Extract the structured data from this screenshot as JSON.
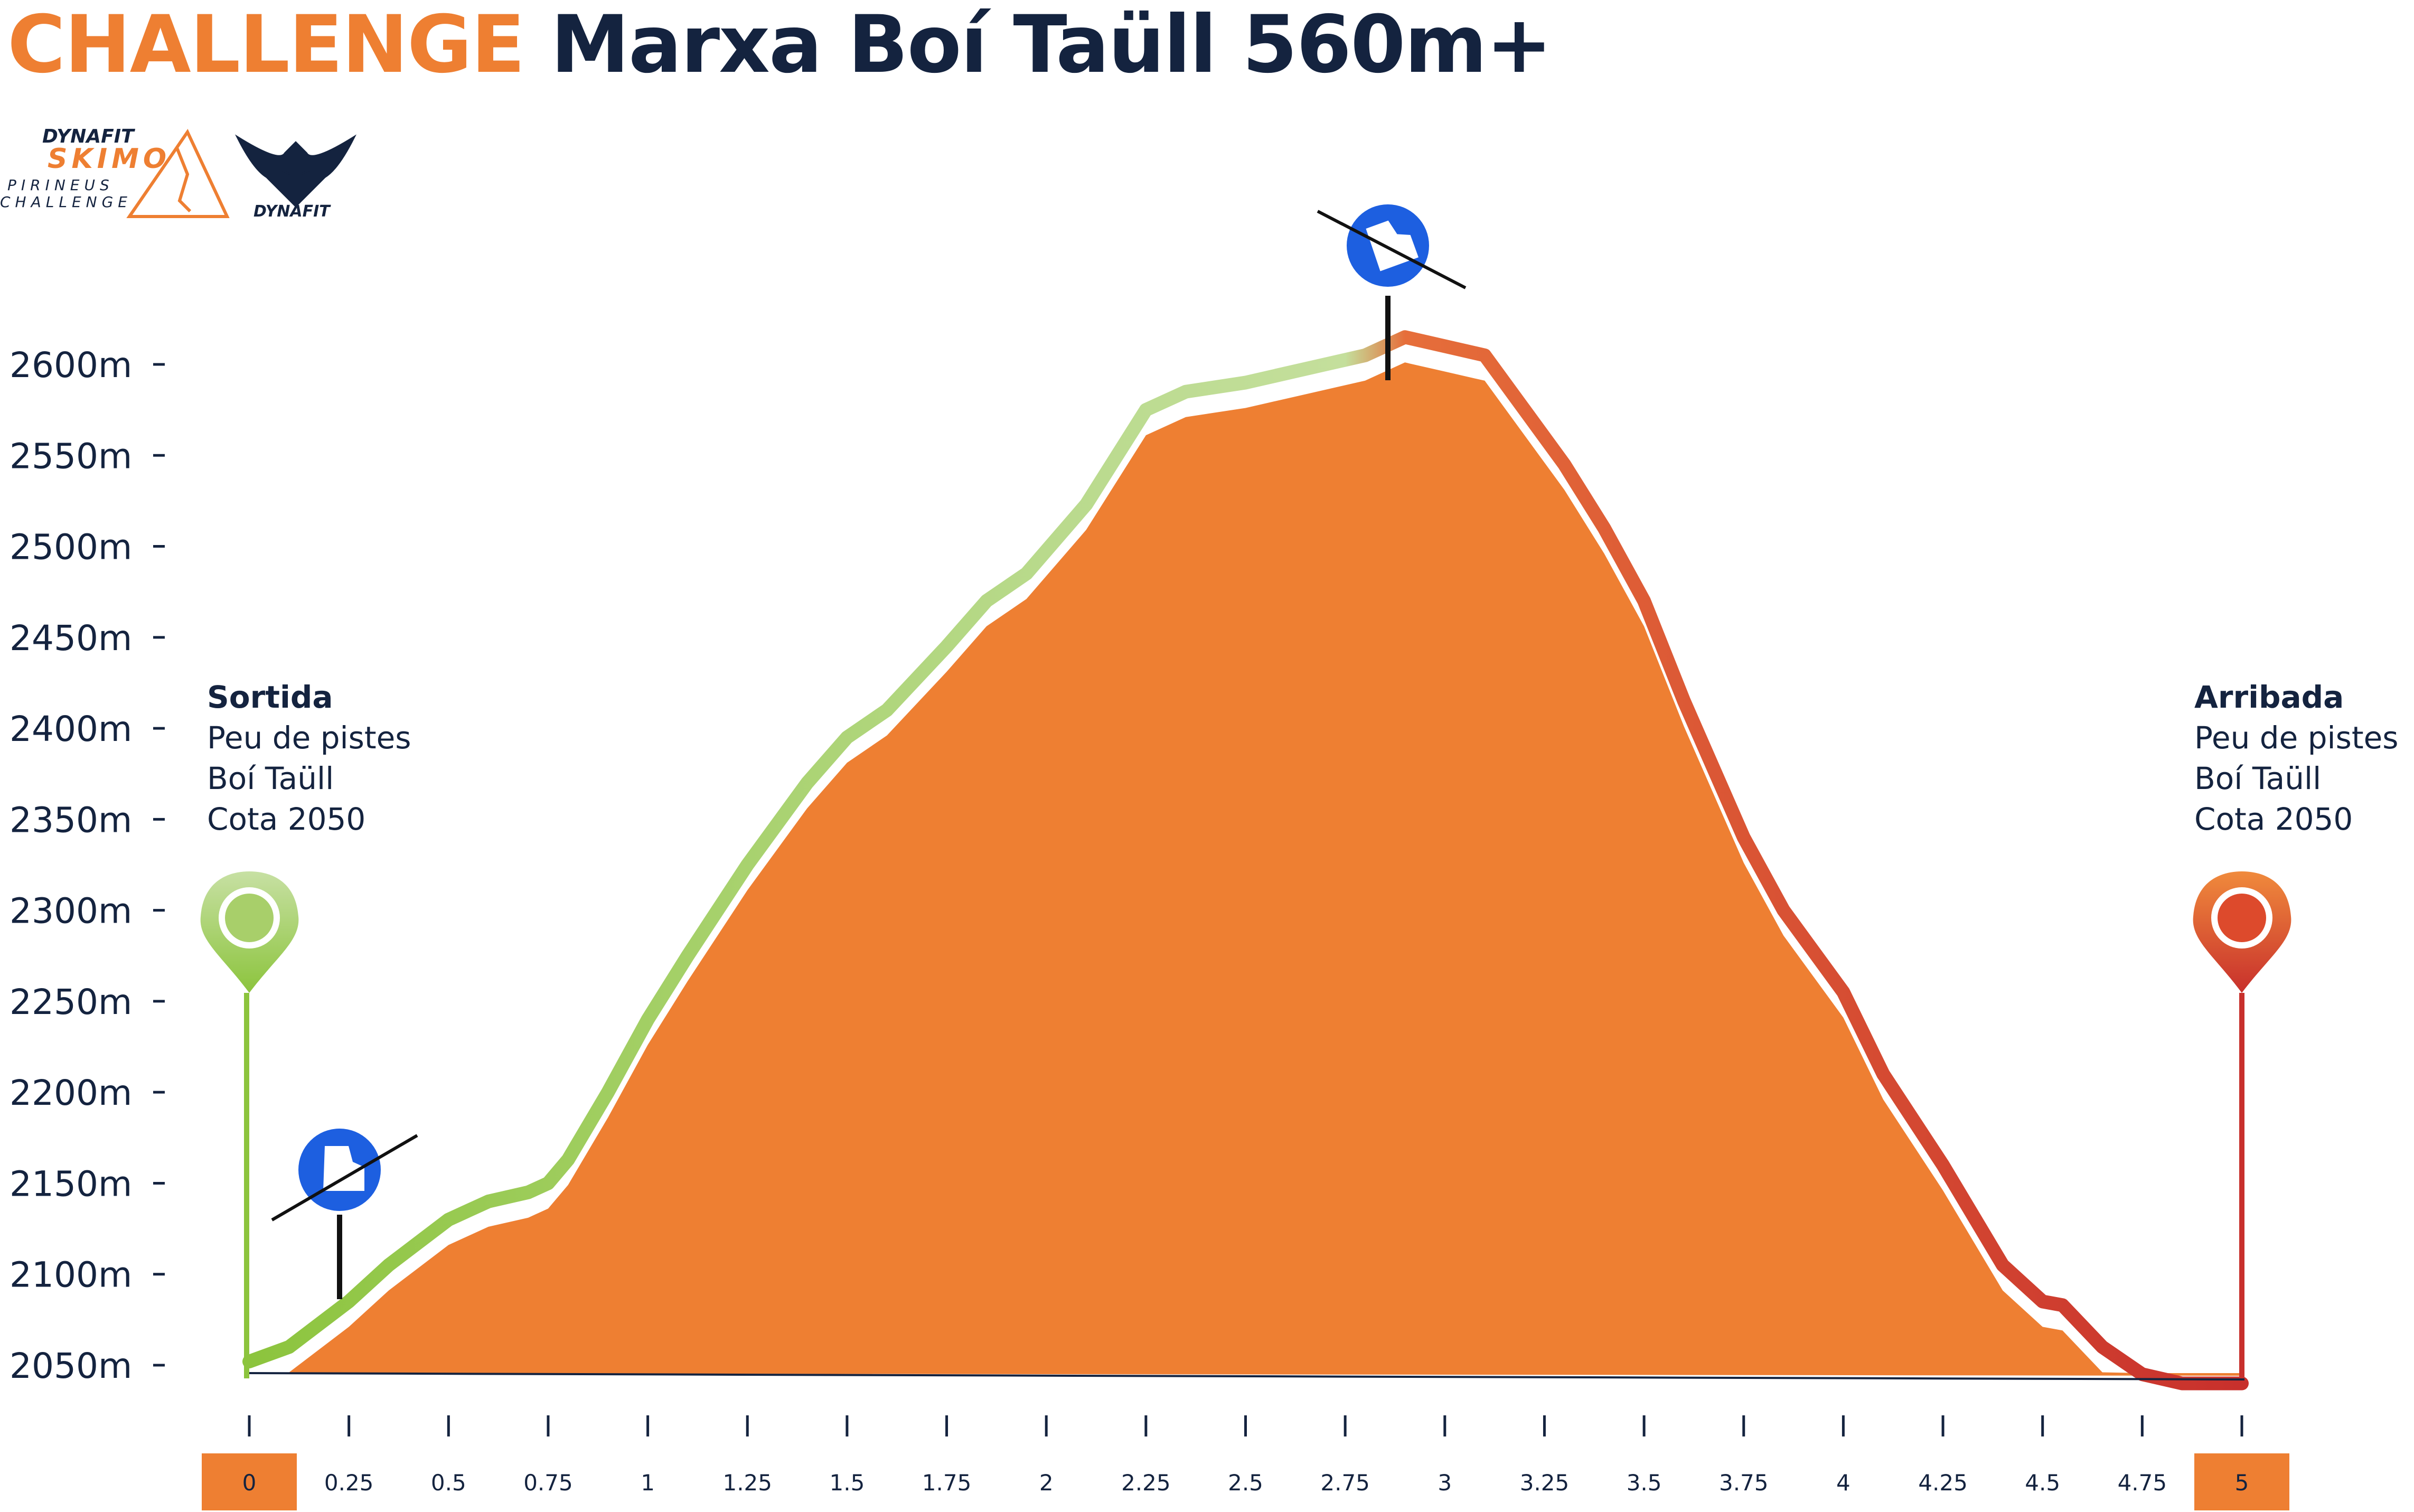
{
  "header": {
    "title_highlight": "CHALLENGE",
    "title_rest": "Marxa Boí Taüll 560m+"
  },
  "logos": {
    "left_brand": "DYNAFIT",
    "left_event": "SKIMO",
    "left_line1": "PIRINEUS",
    "left_line2": "CHALLENGE",
    "right_brand": "DYNAFIT"
  },
  "colors": {
    "accent_orange": "#EE7F32",
    "title_navy": "#14233F",
    "ascent_green": "#8CC43D",
    "descent_red": "#D8402E",
    "icon_blue": "#1D5FE0"
  },
  "start": {
    "title": "Sortida",
    "lines": [
      "Peu de pistes",
      "Boí Taüll",
      "Cota 2050"
    ]
  },
  "finish": {
    "title": "Arribada",
    "lines": [
      "Peu de pistes",
      "Boí Taüll",
      "Cota 2050"
    ]
  },
  "chart_data": {
    "type": "area",
    "title": "CHALLENGE Marxa Boí Taüll 560m+",
    "xlabel": "",
    "ylabel": "",
    "xlim": [
      0,
      5
    ],
    "ylim": [
      2050,
      2600
    ],
    "y_ticks": [
      "2600m",
      "2550m",
      "2500m",
      "2450m",
      "2400m",
      "2350m",
      "2300m",
      "2250m",
      "2200m",
      "2150m",
      "2100m",
      "2050m"
    ],
    "y_tick_values": [
      2600,
      2550,
      2500,
      2450,
      2400,
      2350,
      2300,
      2250,
      2200,
      2150,
      2100,
      2050
    ],
    "x_ticks": [
      "0",
      "0.25",
      "0.5",
      "0.75",
      "1",
      "1.25",
      "1.5",
      "1.75",
      "2",
      "2.25",
      "2.5",
      "2.75",
      "3",
      "3.25",
      "3.5",
      "3.75",
      "4",
      "4.25",
      "4.5",
      "4.75",
      "5"
    ],
    "x_tick_values": [
      0,
      0.25,
      0.5,
      0.75,
      1,
      1.25,
      1.5,
      1.75,
      2,
      2.25,
      2.5,
      2.75,
      3,
      3.25,
      3.5,
      3.75,
      4,
      4.25,
      4.5,
      4.75,
      5
    ],
    "highlighted_x_ticks": [
      "0",
      "5"
    ],
    "series": [
      {
        "x": [
          0,
          0.1,
          0.25,
          0.35,
          0.5,
          0.6,
          0.7,
          0.75,
          0.8,
          0.9,
          1,
          1.1,
          1.25,
          1.4,
          1.5,
          1.6,
          1.75,
          1.85,
          1.95,
          2.1,
          2.25,
          2.35,
          2.5,
          2.6,
          2.7,
          2.8,
          2.9,
          3,
          3.1,
          3.2,
          3.3,
          3.4,
          3.5,
          3.6,
          3.75,
          3.85,
          4,
          4.1,
          4.25,
          4.4,
          4.5,
          4.55,
          4.65,
          4.75,
          4.85,
          5
        ],
        "values": [
          2052,
          2060,
          2085,
          2105,
          2130,
          2140,
          2145,
          2150,
          2163,
          2200,
          2240,
          2275,
          2325,
          2370,
          2395,
          2410,
          2445,
          2470,
          2485,
          2523,
          2575,
          2585,
          2590,
          2595,
          2600,
          2605,
          2615,
          2610,
          2605,
          2575,
          2545,
          2510,
          2470,
          2415,
          2340,
          2300,
          2255,
          2210,
          2160,
          2105,
          2085,
          2083,
          2060,
          2045,
          2040,
          2040
        ]
      }
    ],
    "markers": [
      {
        "label": "Sortida",
        "x": 0,
        "type": "pin"
      },
      {
        "label": "skin-up",
        "x": 0.25,
        "type": "ski-icon"
      },
      {
        "label": "summit-transition",
        "x": 2.9,
        "type": "ski-icon"
      },
      {
        "label": "Arribada",
        "x": 5,
        "type": "pin"
      }
    ]
  }
}
